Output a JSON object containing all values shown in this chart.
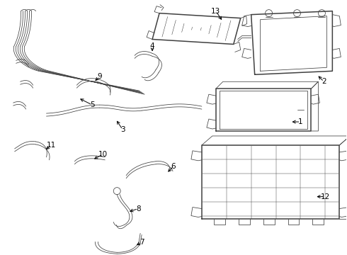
{
  "bg_color": "#ffffff",
  "line_color": "#404040",
  "text_color": "#000000",
  "lw": 0.9,
  "lw_thin": 0.55,
  "lw_thick": 1.1,
  "figsize": [
    4.9,
    3.6
  ],
  "dpi": 100
}
